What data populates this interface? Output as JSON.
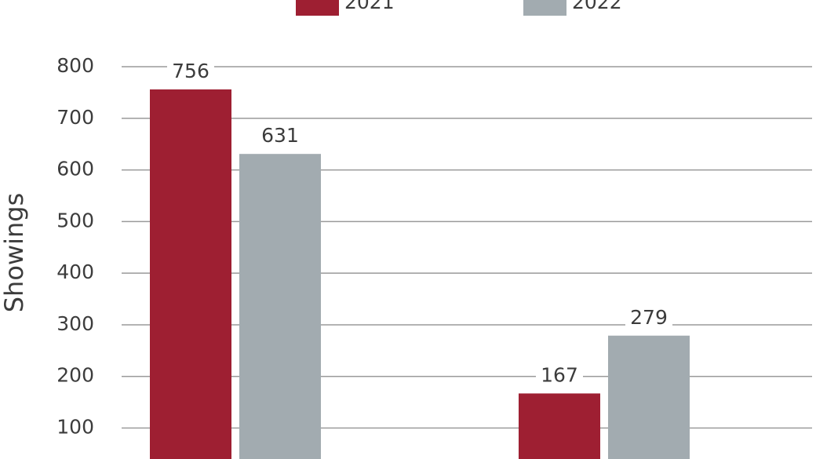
{
  "chart_data": {
    "type": "bar",
    "y_label": "Showings",
    "categories": [
      null,
      null
    ],
    "series": [
      {
        "name": "2021",
        "color": "#9e1f32",
        "values": [
          756,
          167
        ]
      },
      {
        "name": "2022",
        "color": "#a2abb0",
        "values": [
          631,
          279
        ]
      }
    ],
    "ylim": [
      40,
      800
    ],
    "yticks": [
      100,
      200,
      300,
      400,
      500,
      600,
      700,
      800
    ],
    "grid": true
  }
}
